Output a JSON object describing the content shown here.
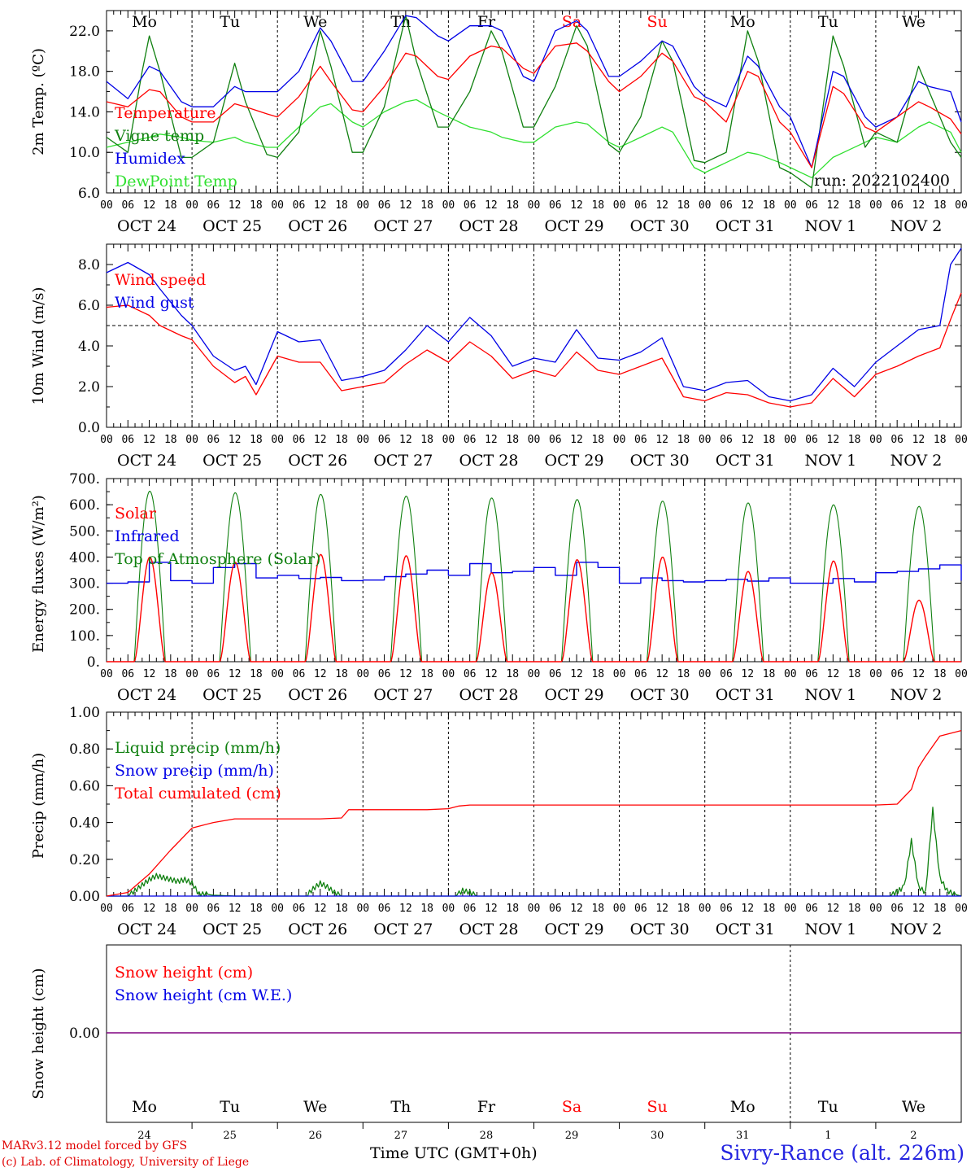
{
  "figure": {
    "run_label": "run: 2022102400",
    "station": "Sivry-Rance (alt. 226m)",
    "credit_line1": "MARv3.12 model forced by GFS",
    "credit_line2": "(c) Lab. of Climatology, University of Liege",
    "xaxis_title": "Time UTC (GMT+0h)",
    "day_abbrev": [
      "Mo",
      "Tu",
      "We",
      "Th",
      "Fr",
      "Sa",
      "Su",
      "Mo",
      "Tu",
      "We"
    ],
    "weekend_indices": [
      5,
      6
    ],
    "date_labels": [
      "OCT 24",
      "OCT 25",
      "OCT 26",
      "OCT 27",
      "OCT 28",
      "OCT 29",
      "OCT 30",
      "OCT 31",
      "NOV  1",
      "NOV  2"
    ],
    "day_numbers": [
      "24",
      "25",
      "26",
      "27",
      "28",
      "29",
      "30",
      "31",
      "1",
      "2"
    ],
    "hour_ticks": [
      "00",
      "06",
      "12",
      "18"
    ],
    "final_tick": "00",
    "colors": {
      "red": "#ff0000",
      "green": "#108010",
      "blue": "#0000e6",
      "lightgreen": "#30e030",
      "purple": "#800080"
    }
  },
  "chart_data": [
    {
      "id": "temperature",
      "type": "line",
      "x_unit": "hours since 2022-10-24 00 UTC",
      "ylabel": "2m Temp. (ºC)",
      "ylim": [
        6,
        24
      ],
      "yticks": [
        6.0,
        10.0,
        14.0,
        18.0,
        22.0
      ],
      "ytick_labels": [
        "6.0",
        "10.0",
        "14.0",
        "18.0",
        "22.0"
      ],
      "series": [
        {
          "name": "Temperature",
          "color": "red",
          "x": [
            0,
            6,
            12,
            15,
            21,
            24,
            30,
            36,
            39,
            45,
            48,
            54,
            60,
            63,
            69,
            72,
            78,
            84,
            87,
            93,
            96,
            102,
            108,
            111,
            117,
            120,
            126,
            132,
            135,
            141,
            144,
            150,
            156,
            159,
            165,
            168,
            174,
            180,
            183,
            189,
            192,
            198,
            204,
            207,
            213,
            216,
            222,
            228,
            231,
            237,
            240
          ],
          "y": [
            15.0,
            14.5,
            16.2,
            16.0,
            13.5,
            13.0,
            13.0,
            14.8,
            14.5,
            13.8,
            13.5,
            15.5,
            18.5,
            17.0,
            14.2,
            14.0,
            16.5,
            19.8,
            19.5,
            17.5,
            17.2,
            19.5,
            20.5,
            20.3,
            18.3,
            17.8,
            20.5,
            20.8,
            20.0,
            17.0,
            16.0,
            17.5,
            19.8,
            19.0,
            15.5,
            15.0,
            13.0,
            18.0,
            17.5,
            13.0,
            12.0,
            8.5,
            16.5,
            15.8,
            12.5,
            12.0,
            13.5,
            15.0,
            14.5,
            13.3,
            11.8
          ]
        },
        {
          "name": "Vigne temp",
          "color": "green",
          "x": [
            0,
            6,
            10,
            12,
            15,
            21,
            24,
            30,
            36,
            39,
            45,
            48,
            54,
            60,
            63,
            69,
            72,
            78,
            84,
            87,
            93,
            96,
            102,
            108,
            111,
            117,
            120,
            126,
            132,
            135,
            141,
            144,
            150,
            156,
            159,
            165,
            168,
            174,
            180,
            183,
            189,
            192,
            198,
            204,
            207,
            213,
            216,
            222,
            228,
            231,
            237,
            240
          ],
          "y": [
            11.5,
            10.0,
            18.0,
            21.5,
            18.0,
            9.5,
            9.5,
            11.0,
            18.8,
            15.0,
            9.8,
            9.5,
            12.0,
            22.0,
            18.5,
            10.0,
            10.0,
            14.5,
            23.5,
            19.0,
            12.5,
            12.5,
            16.0,
            22.0,
            20.0,
            12.5,
            12.5,
            16.5,
            22.5,
            20.5,
            10.8,
            10.0,
            13.5,
            21.0,
            19.0,
            9.2,
            9.0,
            10.0,
            22.0,
            19.0,
            8.5,
            8.0,
            6.5,
            21.5,
            18.5,
            10.5,
            12.0,
            11.0,
            18.5,
            16.0,
            11.0,
            9.5
          ]
        },
        {
          "name": "Humidex",
          "color": "blue",
          "x": [
            0,
            6,
            12,
            15,
            21,
            24,
            30,
            36,
            39,
            45,
            48,
            54,
            60,
            63,
            69,
            72,
            78,
            84,
            87,
            93,
            96,
            102,
            108,
            111,
            117,
            120,
            126,
            132,
            135,
            141,
            144,
            150,
            156,
            159,
            165,
            168,
            174,
            180,
            183,
            189,
            192,
            198,
            204,
            207,
            213,
            216,
            222,
            228,
            231,
            237,
            240
          ],
          "y": [
            17.0,
            15.3,
            18.5,
            18.0,
            15.0,
            14.5,
            14.5,
            16.5,
            16.0,
            16.0,
            16.0,
            18.0,
            22.3,
            21.0,
            17.0,
            17.0,
            20.0,
            23.5,
            23.3,
            21.5,
            21.0,
            22.5,
            22.5,
            22.0,
            17.5,
            17.0,
            22.0,
            23.0,
            22.0,
            17.5,
            17.5,
            19.0,
            21.0,
            20.5,
            16.5,
            15.5,
            14.5,
            19.5,
            18.5,
            14.5,
            13.5,
            8.5,
            18.0,
            17.5,
            13.5,
            12.5,
            13.5,
            17.0,
            16.5,
            16.0,
            13.0
          ]
        },
        {
          "name": "DewPoint Temp",
          "color": "lightgreen",
          "x": [
            0,
            6,
            12,
            15,
            21,
            24,
            30,
            36,
            39,
            45,
            48,
            54,
            60,
            63,
            69,
            72,
            78,
            84,
            87,
            93,
            96,
            102,
            108,
            111,
            117,
            120,
            126,
            132,
            135,
            141,
            144,
            150,
            156,
            159,
            165,
            168,
            174,
            180,
            183,
            189,
            192,
            198,
            204,
            207,
            213,
            216,
            222,
            228,
            231,
            237,
            240
          ],
          "y": [
            10.5,
            11.0,
            11.5,
            11.8,
            11.5,
            11.2,
            11.0,
            11.5,
            11.0,
            10.5,
            10.5,
            12.5,
            14.5,
            14.8,
            13.0,
            12.5,
            14.0,
            15.0,
            15.2,
            14.0,
            13.5,
            12.5,
            12.0,
            11.5,
            11.0,
            11.0,
            12.5,
            13.0,
            12.8,
            11.0,
            10.5,
            11.5,
            12.5,
            12.0,
            8.5,
            8.0,
            9.0,
            10.0,
            9.8,
            9.0,
            8.5,
            7.5,
            9.5,
            10.0,
            11.0,
            11.5,
            11.0,
            12.5,
            13.0,
            12.0,
            10.0
          ]
        }
      ]
    },
    {
      "id": "wind",
      "type": "line",
      "x_unit": "hours since 2022-10-24 00 UTC",
      "ylabel": "10m Wind (m/s)",
      "ylim": [
        0,
        9
      ],
      "yticks": [
        0.0,
        2.0,
        4.0,
        6.0,
        8.0
      ],
      "ytick_labels": [
        "0.0",
        "2.0",
        "4.0",
        "6.0",
        "8.0"
      ],
      "reference_line": 5.0,
      "series": [
        {
          "name": "Wind speed",
          "color": "red",
          "x": [
            0,
            6,
            12,
            15,
            21,
            24,
            30,
            36,
            39,
            42,
            48,
            54,
            60,
            66,
            72,
            78,
            84,
            90,
            96,
            102,
            108,
            114,
            120,
            126,
            132,
            138,
            144,
            150,
            156,
            162,
            168,
            174,
            180,
            186,
            192,
            198,
            204,
            210,
            216,
            222,
            228,
            234,
            237,
            240
          ],
          "y": [
            5.9,
            6.0,
            5.5,
            5.0,
            4.5,
            4.3,
            3.0,
            2.2,
            2.5,
            1.6,
            3.5,
            3.2,
            3.2,
            1.8,
            2.0,
            2.2,
            3.1,
            3.8,
            3.2,
            4.2,
            3.5,
            2.4,
            2.8,
            2.5,
            3.7,
            2.8,
            2.6,
            3.0,
            3.4,
            1.5,
            1.3,
            1.7,
            1.6,
            1.2,
            1.0,
            1.2,
            2.4,
            1.5,
            2.6,
            3.0,
            3.5,
            3.9,
            5.3,
            6.6
          ]
        },
        {
          "name": "Wind gust",
          "color": "blue",
          "x": [
            0,
            6,
            12,
            15,
            21,
            24,
            30,
            36,
            39,
            42,
            48,
            54,
            60,
            66,
            72,
            78,
            84,
            90,
            96,
            102,
            108,
            114,
            120,
            126,
            132,
            138,
            144,
            150,
            156,
            162,
            168,
            174,
            180,
            186,
            192,
            198,
            204,
            210,
            216,
            222,
            228,
            234,
            237,
            240
          ],
          "y": [
            7.6,
            8.1,
            7.5,
            6.8,
            5.5,
            5.0,
            3.5,
            2.8,
            3.0,
            2.1,
            4.7,
            4.2,
            4.3,
            2.3,
            2.5,
            2.8,
            3.8,
            5.0,
            4.2,
            5.4,
            4.5,
            3.0,
            3.4,
            3.2,
            4.8,
            3.4,
            3.3,
            3.7,
            4.4,
            2.0,
            1.8,
            2.2,
            2.3,
            1.5,
            1.3,
            1.6,
            2.9,
            2.0,
            3.2,
            4.0,
            4.8,
            5.0,
            8.0,
            8.8
          ]
        }
      ]
    },
    {
      "id": "energy",
      "type": "line",
      "x_unit": "hours since 2022-10-24 00 UTC",
      "ylabel": "Energy fluxes (W/m²)",
      "ylim": [
        0,
        700
      ],
      "yticks": [
        0,
        100,
        200,
        300,
        400,
        500,
        600,
        700
      ],
      "ytick_labels": [
        "0.",
        "100.",
        "200.",
        "300.",
        "400.",
        "500.",
        "600.",
        "700."
      ],
      "solar_window_hours": [
        7.8,
        16.5
      ],
      "series": [
        {
          "name": "Solar",
          "color": "red",
          "daily_peak": [
            400,
            380,
            410,
            405,
            340,
            390,
            400,
            345,
            385,
            235
          ]
        },
        {
          "name": "Infrared",
          "color": "blue",
          "x": [
            0,
            6,
            12,
            18,
            24,
            30,
            36,
            42,
            48,
            54,
            60,
            66,
            72,
            78,
            84,
            90,
            96,
            102,
            108,
            114,
            120,
            126,
            132,
            138,
            144,
            150,
            156,
            162,
            168,
            174,
            180,
            186,
            192,
            198,
            204,
            210,
            216,
            222,
            228,
            234,
            240
          ],
          "y": [
            300,
            305,
            380,
            310,
            300,
            360,
            375,
            320,
            330,
            318,
            322,
            310,
            312,
            325,
            335,
            350,
            330,
            375,
            340,
            345,
            360,
            330,
            380,
            360,
            300,
            320,
            310,
            305,
            310,
            315,
            308,
            320,
            300,
            300,
            318,
            305,
            340,
            345,
            355,
            370,
            310
          ]
        },
        {
          "name": "Top of Atmosphere (Solar)",
          "color": "green",
          "daily_peak": [
            652,
            646,
            640,
            633,
            626,
            620,
            614,
            607,
            600,
            594
          ]
        }
      ]
    },
    {
      "id": "precip",
      "type": "line",
      "x_unit": "hours since 2022-10-24 00 UTC",
      "ylabel": "Precip (mm/h)",
      "ylim": [
        0,
        1
      ],
      "yticks": [
        0,
        0.2,
        0.4,
        0.6,
        0.8,
        1.0
      ],
      "ytick_labels": [
        "0.00",
        "0.20",
        "0.40",
        "0.60",
        "0.80",
        "1.00"
      ],
      "series": [
        {
          "name": "Liquid precip (mm/h)",
          "color": "green",
          "x": [
            0,
            6,
            8,
            10,
            12,
            14,
            16,
            18,
            20,
            22,
            24,
            26,
            28,
            30,
            36,
            56,
            58,
            60,
            62,
            64,
            66,
            98,
            100,
            102,
            104,
            120,
            220,
            224,
            226,
            228,
            230,
            232,
            234,
            236,
            238,
            240
          ],
          "y": [
            0,
            0,
            0.03,
            0.06,
            0.09,
            0.11,
            0.1,
            0.09,
            0.08,
            0.09,
            0.07,
            0.01,
            0.01,
            0.005,
            0,
            0,
            0.04,
            0.07,
            0.05,
            0.02,
            0,
            0,
            0.03,
            0.02,
            0,
            0,
            0,
            0.05,
            0.3,
            0.05,
            0.02,
            0.47,
            0.1,
            0.03,
            0.01,
            0
          ]
        },
        {
          "name": "Snow precip (mm/h)",
          "color": "blue",
          "x": [
            0,
            240
          ],
          "y": [
            0,
            0
          ]
        },
        {
          "name": "Total cumulated (cm)",
          "color": "red",
          "x": [
            0,
            6,
            12,
            18,
            24,
            27,
            30,
            36,
            48,
            60,
            66,
            68,
            72,
            90,
            96,
            99,
            102,
            120,
            144,
            168,
            192,
            216,
            222,
            226,
            228,
            230,
            234,
            240
          ],
          "y": [
            0,
            0.02,
            0.12,
            0.25,
            0.37,
            0.385,
            0.4,
            0.42,
            0.42,
            0.42,
            0.425,
            0.47,
            0.47,
            0.47,
            0.475,
            0.49,
            0.495,
            0.495,
            0.495,
            0.495,
            0.495,
            0.495,
            0.5,
            0.58,
            0.7,
            0.76,
            0.87,
            0.9
          ]
        }
      ]
    },
    {
      "id": "snow",
      "type": "line",
      "x_unit": "hours since 2022-10-24 00 UTC",
      "ylabel": "Snow height (cm)",
      "ytick_labels": [
        "0.00"
      ],
      "series": [
        {
          "name": "Snow height (cm)",
          "color": "red",
          "x": [
            0,
            240
          ],
          "y": [
            0,
            0
          ]
        },
        {
          "name": "Snow height (cm W.E.)",
          "color": "blue",
          "x": [
            0,
            240
          ],
          "y": [
            0,
            0
          ]
        }
      ]
    }
  ]
}
